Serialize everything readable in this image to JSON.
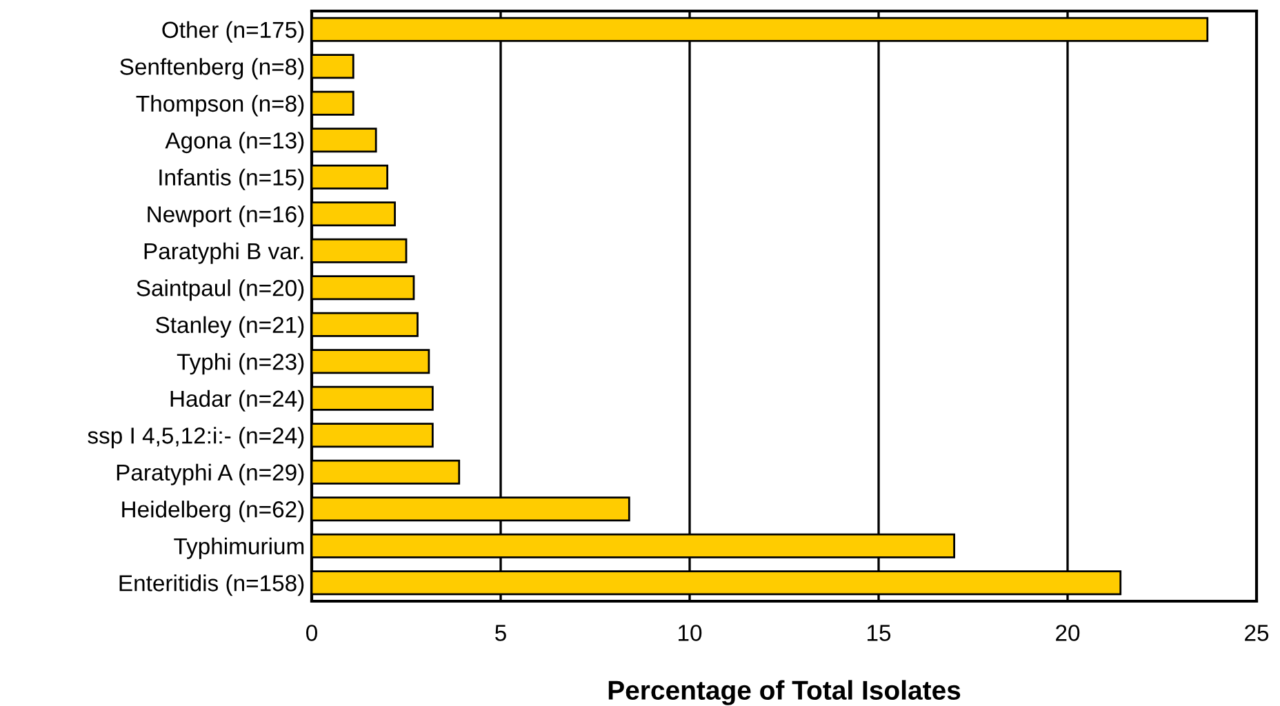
{
  "chart_data": {
    "type": "bar",
    "orientation": "horizontal",
    "xlabel": "Percentage of Total Isolates",
    "categories": [
      "Other (n=175)",
      "Senftenberg (n=8)",
      "Thompson (n=8)",
      "Agona (n=13)",
      "Infantis (n=15)",
      "Newport (n=16)",
      "Paratyphi B var.",
      "Saintpaul (n=20)",
      "Stanley (n=21)",
      "Typhi (n=23)",
      "Hadar (n=24)",
      "ssp I 4,5,12:i:- (n=24)",
      "Paratyphi A (n=29)",
      "Heidelberg (n=62)",
      "Typhimurium",
      "Enteritidis (n=158)"
    ],
    "values": [
      23.7,
      1.1,
      1.1,
      1.7,
      2.0,
      2.2,
      2.5,
      2.7,
      2.8,
      3.1,
      3.2,
      3.2,
      3.9,
      8.4,
      17.0,
      21.4
    ],
    "color": "#ffcc00",
    "xlim": [
      0,
      25
    ],
    "xticks": [
      0,
      5,
      10,
      15,
      20,
      25
    ],
    "grid": "x",
    "legend": false
  }
}
